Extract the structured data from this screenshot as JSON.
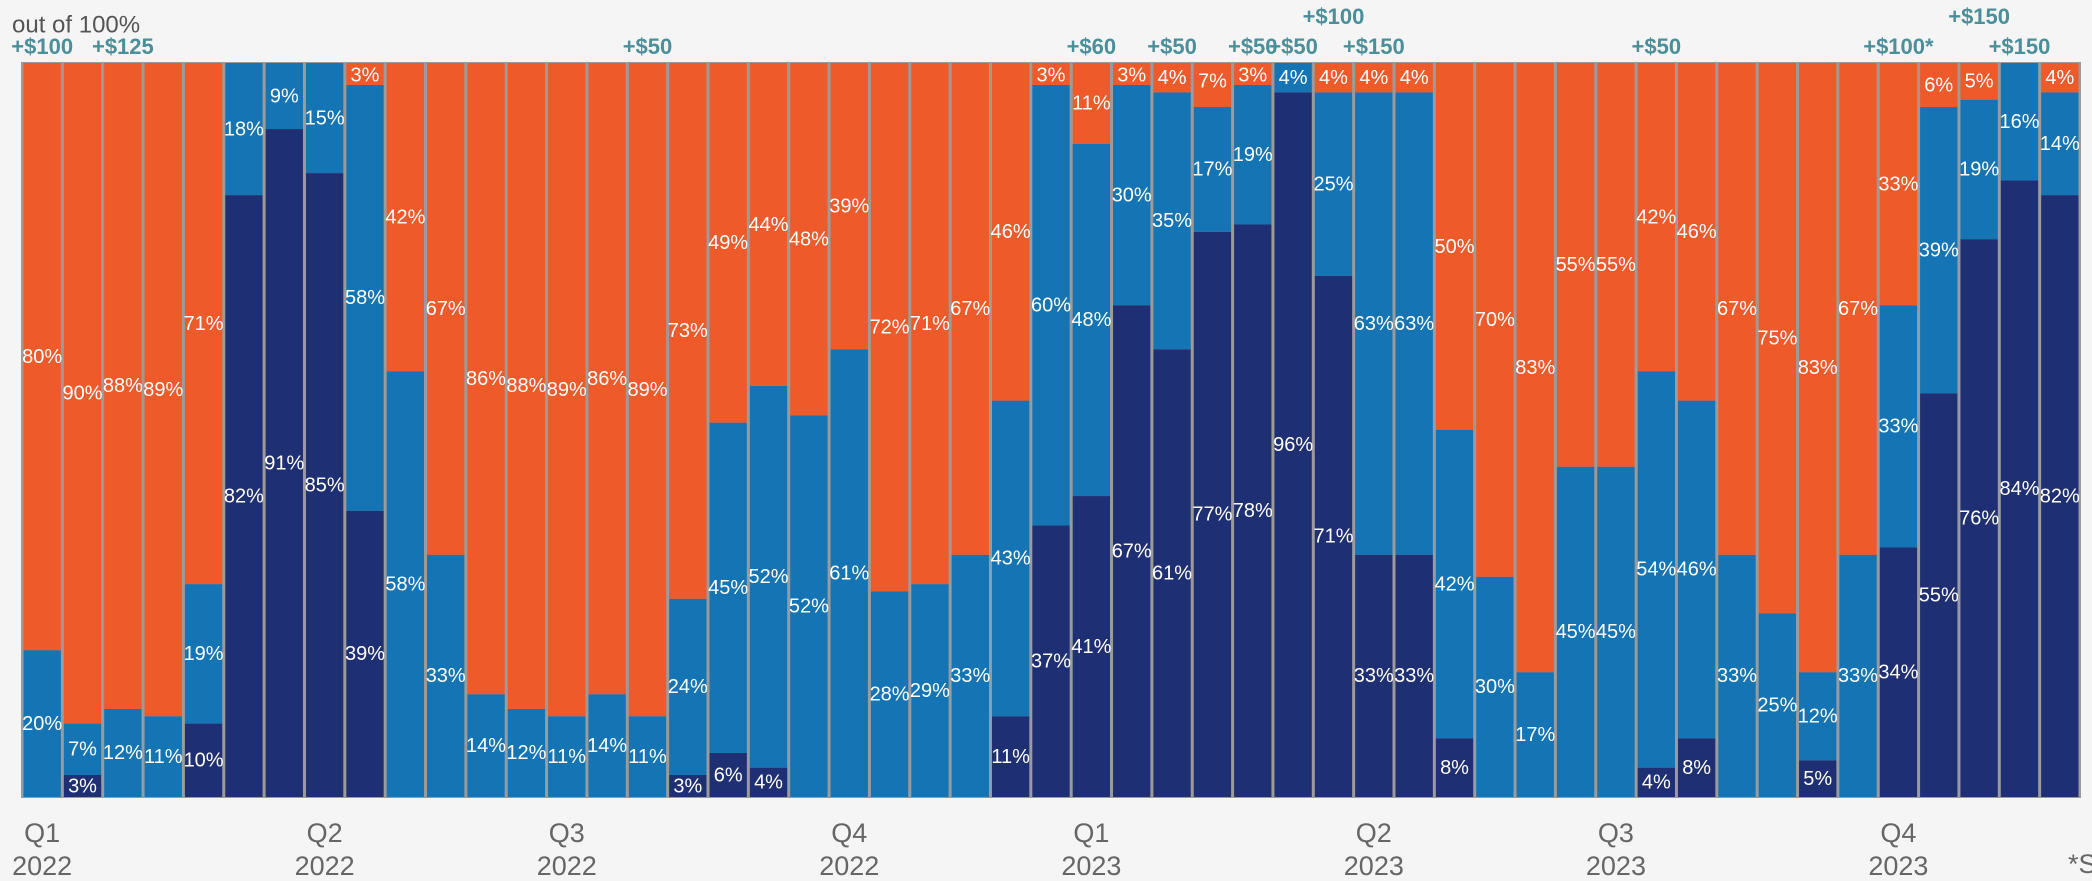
{
  "chart_data": {
    "type": "stacked_bar",
    "subtitle": "out of 100%",
    "footnote": "*S",
    "ylim": [
      0,
      100
    ],
    "categories": [
      [
        "Q1",
        "2022"
      ],
      null,
      null,
      null,
      null,
      null,
      null,
      [
        "Q2",
        "2022"
      ],
      null,
      null,
      null,
      null,
      null,
      [
        "Q3",
        "2022"
      ],
      null,
      null,
      null,
      null,
      null,
      null,
      [
        "Q4",
        "2022"
      ],
      null,
      null,
      null,
      null,
      null,
      [
        "Q1",
        "2023"
      ],
      null,
      null,
      null,
      null,
      null,
      null,
      [
        "Q2",
        "2023"
      ],
      null,
      null,
      null,
      null,
      null,
      [
        "Q3",
        "2023"
      ],
      null,
      null,
      null,
      null,
      null,
      null,
      [
        "Q4",
        "2023"
      ],
      null,
      null,
      null,
      null
    ],
    "annotations": [
      "+$100",
      null,
      "+$125",
      null,
      null,
      null,
      null,
      null,
      null,
      null,
      null,
      null,
      null,
      null,
      null,
      "+$50",
      null,
      null,
      null,
      null,
      null,
      null,
      null,
      null,
      null,
      null,
      "+$60",
      null,
      "+$50",
      null,
      "+$50",
      "+$50",
      "+$100",
      "+$150",
      null,
      null,
      null,
      null,
      null,
      null,
      "+$50",
      null,
      null,
      null,
      null,
      null,
      "+$100*",
      null,
      "+$150",
      "+$150",
      null
    ],
    "series": [
      {
        "color": "#1f2f73",
        "values": [
          0,
          3,
          0,
          0,
          10,
          82,
          91,
          85,
          39,
          0,
          0,
          0,
          0,
          0,
          0,
          0,
          3,
          6,
          4,
          0,
          0,
          0,
          0,
          0,
          11,
          37,
          41,
          67,
          61,
          77,
          78,
          96,
          71,
          33,
          33,
          8,
          0,
          0,
          0,
          0,
          4,
          8,
          0,
          0,
          5,
          0,
          34,
          55,
          76,
          84,
          82
        ],
        "value_labels": [
          null,
          "3%",
          null,
          null,
          "10%",
          "82%",
          "91%",
          "85%",
          "39%",
          null,
          null,
          null,
          null,
          null,
          null,
          null,
          "3%",
          "6%",
          "4%",
          null,
          null,
          null,
          null,
          null,
          "11%",
          "37%",
          "41%",
          "67%",
          "61%",
          "77%",
          "78%",
          "96%",
          "71%",
          "33%",
          "33%",
          "8%",
          null,
          null,
          null,
          null,
          "4%",
          "8%",
          null,
          null,
          "5%",
          null,
          "34%",
          "55%",
          "76%",
          "84%",
          "82%"
        ]
      },
      {
        "color": "#1474b4",
        "values": [
          20,
          7,
          12,
          11,
          19,
          18,
          9,
          15,
          58,
          58,
          33,
          14,
          12,
          11,
          14,
          11,
          24,
          45,
          52,
          52,
          61,
          28,
          29,
          33,
          43,
          60,
          48,
          30,
          35,
          17,
          19,
          4,
          25,
          63,
          63,
          42,
          30,
          17,
          45,
          45,
          54,
          46,
          33,
          25,
          12,
          33,
          33,
          39,
          19,
          16,
          14
        ],
        "value_labels": [
          "20%",
          "7%",
          "12%",
          "11%",
          "19%",
          "18%",
          "9%",
          "15%",
          "58%",
          "58%",
          "33%",
          "14%",
          "12%",
          "11%",
          "14%",
          "11%",
          "24%",
          "45%",
          "52%",
          "52%",
          "61%",
          "28%",
          "29%",
          "33%",
          "43%",
          "60%",
          "48%",
          "30%",
          "35%",
          "17%",
          "19%",
          "4%",
          "25%",
          "63%",
          "63%",
          "42%",
          "30%",
          "17%",
          "45%",
          "45%",
          "54%",
          "46%",
          "33%",
          "25%",
          "12%",
          "33%",
          "33%",
          "39%",
          "19%",
          "16%",
          "14%"
        ]
      },
      {
        "color": "#ee5a2a",
        "values": [
          80,
          90,
          88,
          89,
          71,
          0,
          0,
          0,
          3,
          42,
          67,
          86,
          88,
          89,
          86,
          89,
          73,
          49,
          44,
          48,
          39,
          72,
          71,
          67,
          46,
          3,
          11,
          3,
          4,
          7,
          3,
          0,
          4,
          4,
          4,
          50,
          70,
          83,
          55,
          55,
          42,
          46,
          67,
          75,
          83,
          67,
          33,
          6,
          5,
          0,
          4
        ],
        "value_labels": [
          "80%",
          "90%",
          "88%",
          "89%",
          "71%",
          null,
          null,
          null,
          "3%",
          "42%",
          "67%",
          "86%",
          "88%",
          "89%",
          "86%",
          "89%",
          "73%",
          "49%",
          "44%",
          "48%",
          "39%",
          "72%",
          "71%",
          "67%",
          "46%",
          "3%",
          "11%",
          "3%",
          "4%",
          "7%",
          "3%",
          null,
          "4%",
          "4%",
          "4%",
          "50%",
          "70%",
          "83%",
          "55%",
          "55%",
          "42%",
          "46%",
          "67%",
          "75%",
          "83%",
          "67%",
          "33%",
          "6%",
          "5%",
          null,
          "4%"
        ]
      }
    ]
  }
}
